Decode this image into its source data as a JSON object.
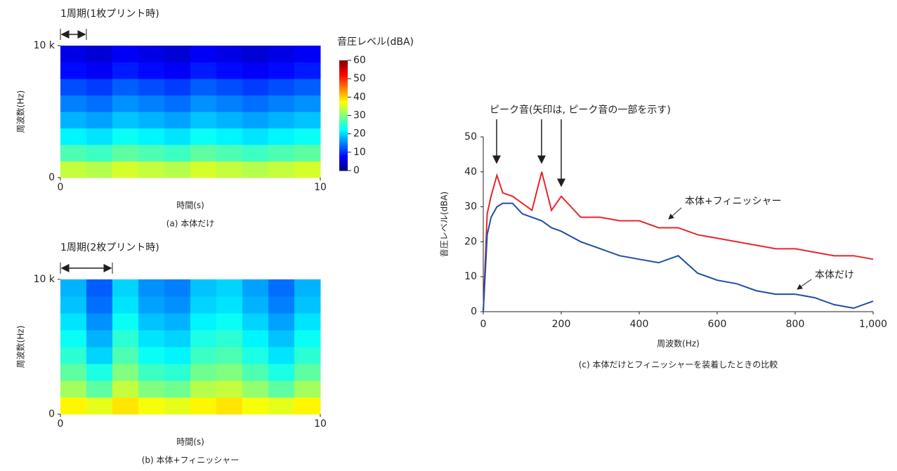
{
  "chart_data": [
    {
      "type": "heatmap",
      "period_label": "1周期(1枚プリント時)",
      "period": 1,
      "ylabel": "周波数(Hz)",
      "xlabel": "時間(s)",
      "caption": "(a) 本体だけ",
      "xlim": [
        0,
        10
      ],
      "xticks": [
        0,
        10
      ],
      "ylim": [
        0,
        10000
      ],
      "yticks": [
        0,
        {
          "value": 10000,
          "label": "10 k"
        }
      ],
      "colormap": "jet",
      "colorbar_title": "音圧レベル(dBA)",
      "clim": [
        0,
        60
      ],
      "cticks": [
        0,
        10,
        20,
        30,
        40,
        50,
        60
      ],
      "values": [
        [
          34,
          33,
          35,
          34,
          33,
          35,
          34,
          33,
          34,
          35
        ],
        [
          27,
          26,
          28,
          27,
          26,
          28,
          27,
          26,
          27,
          28
        ],
        [
          22,
          21,
          23,
          22,
          21,
          23,
          22,
          21,
          22,
          23
        ],
        [
          18,
          17,
          19,
          18,
          17,
          19,
          18,
          17,
          18,
          19
        ],
        [
          15,
          14,
          16,
          15,
          14,
          16,
          15,
          14,
          15,
          16
        ],
        [
          12,
          11,
          13,
          12,
          11,
          13,
          12,
          11,
          12,
          13
        ],
        [
          8,
          7,
          9,
          8,
          7,
          9,
          8,
          7,
          8,
          9
        ],
        [
          6,
          5,
          7,
          6,
          5,
          7,
          6,
          5,
          6,
          7
        ]
      ]
    },
    {
      "type": "heatmap",
      "period_label": "1周期(2枚プリント時)",
      "period": 2,
      "ylabel": "周波数(Hz)",
      "xlabel": "時間(s)",
      "caption": "(b) 本体+フィニッシャー",
      "xlim": [
        0,
        10
      ],
      "xticks": [
        0,
        10
      ],
      "ylim": [
        0,
        10000
      ],
      "yticks": [
        0,
        {
          "value": 10000,
          "label": "10 k"
        }
      ],
      "colormap": "jet",
      "values": [
        [
          38,
          36,
          39,
          37,
          36,
          38,
          39,
          37,
          36,
          38
        ],
        [
          32,
          28,
          34,
          30,
          29,
          33,
          34,
          31,
          28,
          32
        ],
        [
          28,
          24,
          30,
          26,
          25,
          29,
          30,
          27,
          24,
          28
        ],
        [
          25,
          20,
          27,
          23,
          22,
          26,
          27,
          24,
          21,
          25
        ],
        [
          23,
          18,
          25,
          21,
          20,
          24,
          25,
          22,
          19,
          23
        ],
        [
          21,
          16,
          23,
          19,
          18,
          22,
          23,
          20,
          17,
          21
        ],
        [
          19,
          14,
          21,
          17,
          16,
          20,
          21,
          18,
          15,
          19
        ],
        [
          18,
          13,
          20,
          16,
          15,
          19,
          20,
          17,
          14,
          18
        ]
      ]
    },
    {
      "type": "line",
      "annotation": "ピーク音(矢印は, ピーク音の一部を示す)",
      "xlabel": "周波数(Hz)",
      "ylabel": "音圧レベル(dBA)",
      "caption": "(c) 本体だけとフィニッシャーを装着したときの比較",
      "xlim": [
        0,
        1000
      ],
      "xticks": [
        0,
        200,
        400,
        600,
        800,
        {
          "value": 1000,
          "label": "1,000"
        }
      ],
      "ylim": [
        0,
        50
      ],
      "yticks": [
        0,
        10,
        20,
        30,
        40,
        50
      ],
      "x": [
        0,
        10,
        20,
        35,
        50,
        75,
        100,
        125,
        150,
        175,
        200,
        250,
        300,
        350,
        400,
        450,
        500,
        550,
        600,
        650,
        700,
        750,
        800,
        850,
        900,
        950,
        1000
      ],
      "series": [
        {
          "name": "本体+フィニッシャー",
          "color": "#e8262b",
          "values": [
            0,
            28,
            33,
            39,
            34,
            33,
            31,
            29,
            40,
            29,
            33,
            27,
            27,
            26,
            26,
            24,
            24,
            22,
            21,
            20,
            19,
            18,
            18,
            17,
            16,
            16,
            15
          ]
        },
        {
          "name": "本体だけ",
          "color": "#1f4ea3",
          "values": [
            0,
            22,
            27,
            30,
            31,
            31,
            28,
            27,
            26,
            24,
            23,
            20,
            18,
            16,
            15,
            14,
            16,
            11,
            9,
            8,
            6,
            5,
            5,
            4,
            2,
            1,
            3
          ]
        }
      ]
    }
  ]
}
